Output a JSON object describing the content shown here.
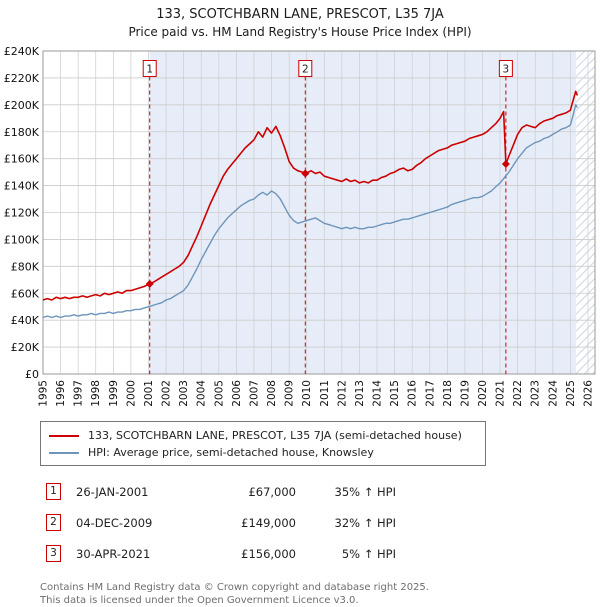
{
  "header": {
    "title": "133, SCOTCHBARN LANE, PRESCOT, L35 7JA",
    "subtitle": "Price paid vs. HM Land Registry's House Price Index (HPI)"
  },
  "chart_data": {
    "type": "line",
    "title": "Price paid vs. HM Land Registry's House Price Index (HPI)",
    "xlabel": "",
    "ylabel": "",
    "ylim": [
      0,
      240000
    ],
    "ytick_step": 20000,
    "ytick_labels": [
      "£0",
      "£20K",
      "£40K",
      "£60K",
      "£80K",
      "£100K",
      "£120K",
      "£140K",
      "£160K",
      "£180K",
      "£200K",
      "£220K",
      "£240K"
    ],
    "xlim": [
      1995,
      2026.4
    ],
    "xticks": [
      1995,
      1996,
      1997,
      1998,
      1999,
      2000,
      2001,
      2002,
      2003,
      2004,
      2005,
      2006,
      2007,
      2008,
      2009,
      2010,
      2011,
      2012,
      2013,
      2014,
      2015,
      2016,
      2017,
      2018,
      2019,
      2020,
      2021,
      2022,
      2023,
      2024,
      2025,
      2026
    ],
    "grid": true,
    "legend_position": "bottom",
    "shaded_region": [
      2001.07,
      2025.33
    ],
    "hatched_region": [
      2025.33,
      2026.4
    ],
    "marker_label_y": 227000,
    "colors": {
      "property": "#cc0000",
      "hpi": "#6e95ba",
      "shade": "#e7edf8",
      "hatch": "#c9d6ea",
      "grid": "#cccccc",
      "border": "#9a9a9a"
    },
    "series": [
      {
        "name": "133, SCOTCHBARN LANE, PRESCOT, L35 7JA (semi-detached house)",
        "color": "#cc0000",
        "width": 1.6,
        "points": [
          [
            1995,
            55000
          ],
          [
            1995.25,
            56000
          ],
          [
            1995.5,
            55000
          ],
          [
            1995.75,
            57000
          ],
          [
            1996,
            56000
          ],
          [
            1996.25,
            57000
          ],
          [
            1996.5,
            56000
          ],
          [
            1996.75,
            57000
          ],
          [
            1997,
            57000
          ],
          [
            1997.25,
            58000
          ],
          [
            1997.5,
            57000
          ],
          [
            1997.75,
            58000
          ],
          [
            1998,
            59000
          ],
          [
            1998.25,
            58000
          ],
          [
            1998.5,
            60000
          ],
          [
            1998.75,
            59000
          ],
          [
            1999,
            60000
          ],
          [
            1999.25,
            61000
          ],
          [
            1999.5,
            60000
          ],
          [
            1999.75,
            62000
          ],
          [
            2000,
            62000
          ],
          [
            2000.25,
            63000
          ],
          [
            2000.5,
            64000
          ],
          [
            2000.75,
            65000
          ],
          [
            2001.07,
            67000
          ],
          [
            2001.25,
            68000
          ],
          [
            2001.5,
            70000
          ],
          [
            2001.75,
            72000
          ],
          [
            2002,
            74000
          ],
          [
            2002.25,
            76000
          ],
          [
            2002.5,
            78000
          ],
          [
            2002.75,
            80000
          ],
          [
            2003,
            83000
          ],
          [
            2003.25,
            88000
          ],
          [
            2003.5,
            95000
          ],
          [
            2003.75,
            102000
          ],
          [
            2004,
            110000
          ],
          [
            2004.25,
            118000
          ],
          [
            2004.5,
            126000
          ],
          [
            2004.75,
            133000
          ],
          [
            2005,
            140000
          ],
          [
            2005.25,
            147000
          ],
          [
            2005.5,
            152000
          ],
          [
            2005.75,
            156000
          ],
          [
            2006,
            160000
          ],
          [
            2006.25,
            164000
          ],
          [
            2006.5,
            168000
          ],
          [
            2006.75,
            171000
          ],
          [
            2007,
            174000
          ],
          [
            2007.25,
            180000
          ],
          [
            2007.5,
            176000
          ],
          [
            2007.75,
            183000
          ],
          [
            2008,
            179000
          ],
          [
            2008.25,
            184000
          ],
          [
            2008.5,
            177000
          ],
          [
            2008.75,
            168000
          ],
          [
            2009,
            158000
          ],
          [
            2009.25,
            153000
          ],
          [
            2009.5,
            151000
          ],
          [
            2009.75,
            150000
          ],
          [
            2009.92,
            149000
          ],
          [
            2010.25,
            151000
          ],
          [
            2010.5,
            149000
          ],
          [
            2010.75,
            150000
          ],
          [
            2011,
            147000
          ],
          [
            2011.25,
            146000
          ],
          [
            2011.5,
            145000
          ],
          [
            2011.75,
            144000
          ],
          [
            2012,
            143000
          ],
          [
            2012.25,
            145000
          ],
          [
            2012.5,
            143000
          ],
          [
            2012.75,
            144000
          ],
          [
            2013,
            142000
          ],
          [
            2013.25,
            143000
          ],
          [
            2013.5,
            142000
          ],
          [
            2013.75,
            144000
          ],
          [
            2014,
            144000
          ],
          [
            2014.25,
            146000
          ],
          [
            2014.5,
            147000
          ],
          [
            2014.75,
            149000
          ],
          [
            2015,
            150000
          ],
          [
            2015.25,
            152000
          ],
          [
            2015.5,
            153000
          ],
          [
            2015.75,
            151000
          ],
          [
            2016,
            152000
          ],
          [
            2016.25,
            155000
          ],
          [
            2016.5,
            157000
          ],
          [
            2016.75,
            160000
          ],
          [
            2017,
            162000
          ],
          [
            2017.25,
            164000
          ],
          [
            2017.5,
            166000
          ],
          [
            2017.75,
            167000
          ],
          [
            2018,
            168000
          ],
          [
            2018.25,
            170000
          ],
          [
            2018.5,
            171000
          ],
          [
            2018.75,
            172000
          ],
          [
            2019,
            173000
          ],
          [
            2019.25,
            175000
          ],
          [
            2019.5,
            176000
          ],
          [
            2019.75,
            177000
          ],
          [
            2020,
            178000
          ],
          [
            2020.25,
            180000
          ],
          [
            2020.5,
            183000
          ],
          [
            2020.75,
            186000
          ],
          [
            2021,
            190000
          ],
          [
            2021.2,
            195000
          ],
          [
            2021.33,
            156000
          ],
          [
            2021.5,
            162000
          ],
          [
            2021.75,
            170000
          ],
          [
            2022,
            178000
          ],
          [
            2022.25,
            183000
          ],
          [
            2022.5,
            185000
          ],
          [
            2022.75,
            184000
          ],
          [
            2023,
            183000
          ],
          [
            2023.25,
            186000
          ],
          [
            2023.5,
            188000
          ],
          [
            2023.75,
            189000
          ],
          [
            2024,
            190000
          ],
          [
            2024.25,
            192000
          ],
          [
            2024.5,
            193000
          ],
          [
            2024.75,
            194000
          ],
          [
            2025,
            196000
          ],
          [
            2025.15,
            203000
          ],
          [
            2025.3,
            210000
          ],
          [
            2025.4,
            207000
          ]
        ]
      },
      {
        "name": "HPI: Average price, semi-detached house, Knowsley",
        "color": "#6e95ba",
        "width": 1.4,
        "points": [
          [
            1995,
            42000
          ],
          [
            1995.25,
            43000
          ],
          [
            1995.5,
            42000
          ],
          [
            1995.75,
            43000
          ],
          [
            1996,
            42000
          ],
          [
            1996.25,
            43000
          ],
          [
            1996.5,
            43000
          ],
          [
            1996.75,
            44000
          ],
          [
            1997,
            43000
          ],
          [
            1997.25,
            44000
          ],
          [
            1997.5,
            44000
          ],
          [
            1997.75,
            45000
          ],
          [
            1998,
            44000
          ],
          [
            1998.25,
            45000
          ],
          [
            1998.5,
            45000
          ],
          [
            1998.75,
            46000
          ],
          [
            1999,
            45000
          ],
          [
            1999.25,
            46000
          ],
          [
            1999.5,
            46000
          ],
          [
            1999.75,
            47000
          ],
          [
            2000,
            47000
          ],
          [
            2000.25,
            48000
          ],
          [
            2000.5,
            48000
          ],
          [
            2000.75,
            49000
          ],
          [
            2001,
            50000
          ],
          [
            2001.25,
            51000
          ],
          [
            2001.5,
            52000
          ],
          [
            2001.75,
            53000
          ],
          [
            2002,
            55000
          ],
          [
            2002.25,
            56000
          ],
          [
            2002.5,
            58000
          ],
          [
            2002.75,
            60000
          ],
          [
            2003,
            62000
          ],
          [
            2003.25,
            66000
          ],
          [
            2003.5,
            72000
          ],
          [
            2003.75,
            78000
          ],
          [
            2004,
            85000
          ],
          [
            2004.25,
            91000
          ],
          [
            2004.5,
            97000
          ],
          [
            2004.75,
            103000
          ],
          [
            2005,
            108000
          ],
          [
            2005.25,
            112000
          ],
          [
            2005.5,
            116000
          ],
          [
            2005.75,
            119000
          ],
          [
            2006,
            122000
          ],
          [
            2006.25,
            125000
          ],
          [
            2006.5,
            127000
          ],
          [
            2006.75,
            129000
          ],
          [
            2007,
            130000
          ],
          [
            2007.25,
            133000
          ],
          [
            2007.5,
            135000
          ],
          [
            2007.75,
            133000
          ],
          [
            2008,
            136000
          ],
          [
            2008.25,
            134000
          ],
          [
            2008.5,
            130000
          ],
          [
            2008.75,
            124000
          ],
          [
            2009,
            118000
          ],
          [
            2009.25,
            114000
          ],
          [
            2009.5,
            112000
          ],
          [
            2009.75,
            113000
          ],
          [
            2010,
            114000
          ],
          [
            2010.25,
            115000
          ],
          [
            2010.5,
            116000
          ],
          [
            2010.75,
            114000
          ],
          [
            2011,
            112000
          ],
          [
            2011.25,
            111000
          ],
          [
            2011.5,
            110000
          ],
          [
            2011.75,
            109000
          ],
          [
            2012,
            108000
          ],
          [
            2012.25,
            109000
          ],
          [
            2012.5,
            108000
          ],
          [
            2012.75,
            109000
          ],
          [
            2013,
            108000
          ],
          [
            2013.25,
            108000
          ],
          [
            2013.5,
            109000
          ],
          [
            2013.75,
            109000
          ],
          [
            2014,
            110000
          ],
          [
            2014.25,
            111000
          ],
          [
            2014.5,
            112000
          ],
          [
            2014.75,
            112000
          ],
          [
            2015,
            113000
          ],
          [
            2015.25,
            114000
          ],
          [
            2015.5,
            115000
          ],
          [
            2015.75,
            115000
          ],
          [
            2016,
            116000
          ],
          [
            2016.25,
            117000
          ],
          [
            2016.5,
            118000
          ],
          [
            2016.75,
            119000
          ],
          [
            2017,
            120000
          ],
          [
            2017.25,
            121000
          ],
          [
            2017.5,
            122000
          ],
          [
            2017.75,
            123000
          ],
          [
            2018,
            124000
          ],
          [
            2018.25,
            126000
          ],
          [
            2018.5,
            127000
          ],
          [
            2018.75,
            128000
          ],
          [
            2019,
            129000
          ],
          [
            2019.25,
            130000
          ],
          [
            2019.5,
            131000
          ],
          [
            2019.75,
            131000
          ],
          [
            2020,
            132000
          ],
          [
            2020.25,
            134000
          ],
          [
            2020.5,
            136000
          ],
          [
            2020.75,
            139000
          ],
          [
            2021,
            142000
          ],
          [
            2021.25,
            146000
          ],
          [
            2021.5,
            150000
          ],
          [
            2021.75,
            155000
          ],
          [
            2022,
            160000
          ],
          [
            2022.25,
            164000
          ],
          [
            2022.5,
            168000
          ],
          [
            2022.75,
            170000
          ],
          [
            2023,
            172000
          ],
          [
            2023.25,
            173000
          ],
          [
            2023.5,
            175000
          ],
          [
            2023.75,
            176000
          ],
          [
            2024,
            178000
          ],
          [
            2024.25,
            180000
          ],
          [
            2024.5,
            182000
          ],
          [
            2024.75,
            183000
          ],
          [
            2025,
            185000
          ],
          [
            2025.15,
            192000
          ],
          [
            2025.3,
            200000
          ],
          [
            2025.4,
            198000
          ]
        ]
      }
    ],
    "sale_markers": [
      {
        "num": "1",
        "x": 2001.07,
        "y": 67000
      },
      {
        "num": "2",
        "x": 2009.92,
        "y": 149000
      },
      {
        "num": "3",
        "x": 2021.33,
        "y": 156000
      }
    ]
  },
  "sales": [
    {
      "num": "1",
      "date": "26-JAN-2001",
      "price": "£67,000",
      "hpi_diff": "35% ↑ HPI"
    },
    {
      "num": "2",
      "date": "04-DEC-2009",
      "price": "£149,000",
      "hpi_diff": "32% ↑ HPI"
    },
    {
      "num": "3",
      "date": "30-APR-2021",
      "price": "£156,000",
      "hpi_diff": "5% ↑ HPI"
    }
  ],
  "footer": {
    "line1": "Contains HM Land Registry data © Crown copyright and database right 2025.",
    "line2": "This data is licensed under the Open Government Licence v3.0."
  }
}
